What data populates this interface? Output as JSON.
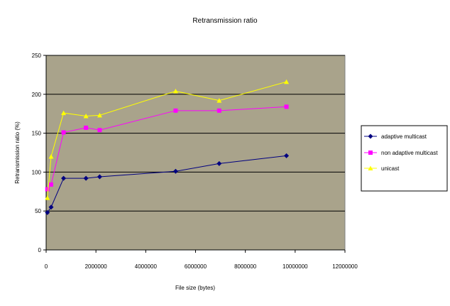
{
  "chart_data": {
    "type": "line",
    "title": "Retransmission ratio",
    "xlabel": "File size (bytes)",
    "ylabel": "Retransmission ratio (%)",
    "xlim": [
      0,
      12000000
    ],
    "ylim": [
      0,
      250
    ],
    "xticks": [
      0,
      2000000,
      4000000,
      6000000,
      8000000,
      10000000,
      12000000
    ],
    "yticks": [
      0,
      50,
      100,
      150,
      200,
      250
    ],
    "grid": "horizontal",
    "plot_background": "#a9a38b",
    "legend_position": "right",
    "series": [
      {
        "name": "adaptive multicast",
        "color": "#000080",
        "marker": "diamond",
        "x": [
          50000,
          200000,
          700000,
          1600000,
          2150000,
          5200000,
          6950000,
          9650000
        ],
        "y": [
          48,
          55,
          92,
          92,
          94,
          101,
          111,
          121
        ]
      },
      {
        "name": "non adaptive multicast",
        "color": "#ff00ff",
        "marker": "square",
        "x": [
          50000,
          200000,
          700000,
          1600000,
          2150000,
          5200000,
          6950000,
          9650000
        ],
        "y": [
          78,
          84,
          151,
          157,
          154,
          179,
          179,
          184
        ]
      },
      {
        "name": "unicast",
        "color": "#ffff00",
        "marker": "triangle",
        "x": [
          50000,
          200000,
          700000,
          1600000,
          2150000,
          5200000,
          6950000,
          9650000
        ],
        "y": [
          67,
          120,
          176,
          172,
          173,
          204,
          192,
          216
        ]
      }
    ]
  }
}
